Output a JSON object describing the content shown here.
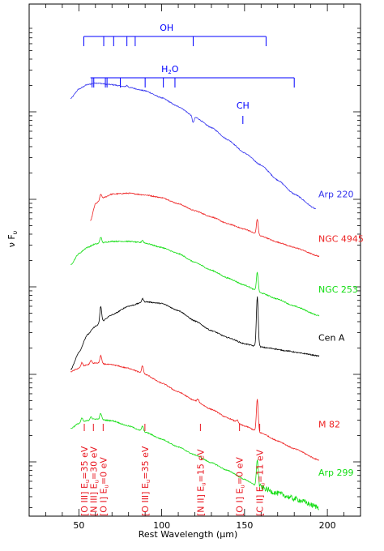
{
  "chart_data": {
    "type": "line",
    "xlabel": "Rest Wavelength (μm)",
    "ylabel": "ν F",
    "ylabel_sub": "υ",
    "xlim": [
      20,
      220
    ],
    "x_ticks": [
      50,
      100,
      150,
      200
    ],
    "y_scale": "log",
    "colors": {
      "axis": "#000000",
      "molecule": "#0000ff",
      "line_id": "#e8141e",
      "blue": "#3333ee",
      "red": "#ee2222",
      "green": "#11dd11",
      "black": "#000000"
    },
    "molecules": [
      {
        "name": "OH",
        "label": "OH",
        "sub": "",
        "x": [
          53,
          65,
          71,
          79,
          84,
          119,
          163
        ],
        "bar_from": 53,
        "bar_to": 163,
        "kind": "bar"
      },
      {
        "name": "H2O",
        "label": "H",
        "sub": "2",
        "tail": "O",
        "x": [
          58,
          59,
          66,
          67,
          75,
          90,
          101,
          108,
          180
        ],
        "bar_from": 57,
        "bar_to": 180,
        "kind": "bar"
      },
      {
        "name": "CH",
        "label": "CH",
        "sub": "",
        "x": [
          149
        ],
        "kind": "tick"
      }
    ],
    "series": [
      {
        "name": "Arp 220",
        "color": "blue",
        "start": 45,
        "end": 193,
        "peak": 60,
        "y": [
          [
            45,
            0.15
          ],
          [
            50,
            0.26
          ],
          [
            55,
            0.31
          ],
          [
            60,
            0.33
          ],
          [
            70,
            0.31
          ],
          [
            80,
            0.28
          ],
          [
            90,
            0.24
          ],
          [
            100,
            0.16
          ],
          [
            110,
            0.06
          ],
          [
            120,
            -0.06
          ],
          [
            130,
            -0.18
          ],
          [
            140,
            -0.32
          ],
          [
            150,
            -0.47
          ],
          [
            160,
            -0.61
          ],
          [
            170,
            -0.78
          ],
          [
            180,
            -0.94
          ],
          [
            193,
            -1.11
          ]
        ],
        "lines": [
          [
            119,
            -0.07
          ],
          [
            79,
            0.02
          ]
        ]
      },
      {
        "name": "NGC 4945",
        "color": "red",
        "start": 57,
        "end": 195,
        "y": [
          [
            57,
            -1.25
          ],
          [
            60,
            -1.05
          ],
          [
            65,
            -0.98
          ],
          [
            70,
            -0.94
          ],
          [
            80,
            -0.93
          ],
          [
            90,
            -0.95
          ],
          [
            100,
            -0.98
          ],
          [
            110,
            -1.05
          ],
          [
            120,
            -1.13
          ],
          [
            130,
            -1.2
          ],
          [
            140,
            -1.28
          ],
          [
            150,
            -1.34
          ],
          [
            160,
            -1.42
          ],
          [
            170,
            -1.49
          ],
          [
            180,
            -1.55
          ],
          [
            195,
            -1.65
          ]
        ],
        "lines": [
          [
            157.7,
            0.18
          ],
          [
            63.2,
            0.06
          ]
        ]
      },
      {
        "name": "NGC 253",
        "color": "green",
        "start": 45,
        "end": 195,
        "y": [
          [
            45,
            -1.75
          ],
          [
            50,
            -1.62
          ],
          [
            55,
            -1.55
          ],
          [
            60,
            -1.51
          ],
          [
            70,
            -1.48
          ],
          [
            80,
            -1.48
          ],
          [
            90,
            -1.5
          ],
          [
            100,
            -1.55
          ],
          [
            110,
            -1.62
          ],
          [
            120,
            -1.72
          ],
          [
            130,
            -1.81
          ],
          [
            140,
            -1.9
          ],
          [
            150,
            -1.98
          ],
          [
            160,
            -2.07
          ],
          [
            170,
            -2.14
          ],
          [
            180,
            -2.22
          ],
          [
            195,
            -2.33
          ]
        ],
        "lines": [
          [
            157.7,
            0.22
          ],
          [
            63.2,
            0.07
          ],
          [
            88.4,
            0.03
          ]
        ]
      },
      {
        "name": "Cen A",
        "color": "black",
        "start": 45,
        "end": 195,
        "y": [
          [
            45,
            -2.95
          ],
          [
            50,
            -2.75
          ],
          [
            55,
            -2.55
          ],
          [
            60,
            -2.45
          ],
          [
            70,
            -2.32
          ],
          [
            80,
            -2.22
          ],
          [
            90,
            -2.17
          ],
          [
            100,
            -2.19
          ],
          [
            110,
            -2.27
          ],
          [
            120,
            -2.39
          ],
          [
            130,
            -2.5
          ],
          [
            140,
            -2.58
          ],
          [
            150,
            -2.65
          ],
          [
            157,
            -2.68
          ],
          [
            165,
            -2.7
          ],
          [
            175,
            -2.73
          ],
          [
            185,
            -2.76
          ],
          [
            195,
            -2.79
          ]
        ],
        "lines": [
          [
            157.7,
            0.57
          ],
          [
            63.2,
            0.19
          ],
          [
            88.4,
            0.04
          ]
        ]
      },
      {
        "name": "M 82",
        "color": "red",
        "start": 45,
        "end": 195,
        "y": [
          [
            45,
            -2.97
          ],
          [
            50,
            -2.93
          ],
          [
            55,
            -2.89
          ],
          [
            60,
            -2.87
          ],
          [
            70,
            -2.89
          ],
          [
            80,
            -2.93
          ],
          [
            90,
            -3.0
          ],
          [
            100,
            -3.1
          ],
          [
            110,
            -3.2
          ],
          [
            120,
            -3.3
          ],
          [
            130,
            -3.4
          ],
          [
            140,
            -3.5
          ],
          [
            150,
            -3.59
          ],
          [
            160,
            -3.67
          ],
          [
            170,
            -3.76
          ],
          [
            180,
            -3.85
          ],
          [
            195,
            -3.98
          ]
        ],
        "lines": [
          [
            157.7,
            0.37
          ],
          [
            63.2,
            0.09
          ],
          [
            88.4,
            0.09
          ],
          [
            51.8,
            0.05
          ],
          [
            57.3,
            0.04
          ],
          [
            121.9,
            0.03
          ],
          [
            145.5,
            0.03
          ]
        ]
      },
      {
        "name": "Arp 299",
        "color": "green",
        "start": 45,
        "end": 195,
        "y": [
          [
            45,
            -3.62
          ],
          [
            50,
            -3.56
          ],
          [
            55,
            -3.53
          ],
          [
            60,
            -3.51
          ],
          [
            70,
            -3.53
          ],
          [
            80,
            -3.59
          ],
          [
            90,
            -3.66
          ],
          [
            100,
            -3.74
          ],
          [
            110,
            -3.83
          ],
          [
            120,
            -3.92
          ],
          [
            130,
            -4.01
          ],
          [
            140,
            -4.1
          ],
          [
            150,
            -4.2
          ],
          [
            157,
            -4.27
          ],
          [
            170,
            -4.36
          ],
          [
            180,
            -4.42
          ],
          [
            195,
            -4.52
          ]
        ],
        "lines": [
          [
            157.7,
            0.3
          ],
          [
            63.2,
            0.07
          ],
          [
            88.4,
            0.06
          ],
          [
            51.8,
            0.05
          ],
          [
            57.3,
            0.04
          ]
        ],
        "noisy_from": 158
      }
    ],
    "series_labels": [
      {
        "text": "Arp 220",
        "color": "blue",
        "y": -0.94
      },
      {
        "text": "NGC 4945",
        "color": "red",
        "y": -1.45
      },
      {
        "text": "NGC 253",
        "color": "green",
        "y": -2.03
      },
      {
        "text": "Cen A",
        "color": "black",
        "y": -2.58
      },
      {
        "text": "M 82",
        "color": "red",
        "y": -3.57
      },
      {
        "text": "Arp 299",
        "color": "green",
        "y": -4.12
      }
    ],
    "line_ids": [
      {
        "x": 51.8,
        "text": "[O III] E",
        "sub": "u",
        "tail": "=35 eV"
      },
      {
        "x": 57.3,
        "text": "[N III] E",
        "sub": "u",
        "tail": "=30 eV"
      },
      {
        "x": 63.2,
        "text": "[O I] E",
        "sub": "u",
        "tail": "=0 eV"
      },
      {
        "x": 88.4,
        "text": "[O III] E",
        "sub": "u",
        "tail": "=35 eV"
      },
      {
        "x": 121.9,
        "text": "[N II] E",
        "sub": "u",
        "tail": "=15 eV"
      },
      {
        "x": 145.5,
        "text": "[O I] E",
        "sub": "u",
        "tail": "=0 eV"
      },
      {
        "x": 157.7,
        "text": "[C II] E",
        "sub": "u",
        "tail": "=11 eV"
      }
    ]
  }
}
